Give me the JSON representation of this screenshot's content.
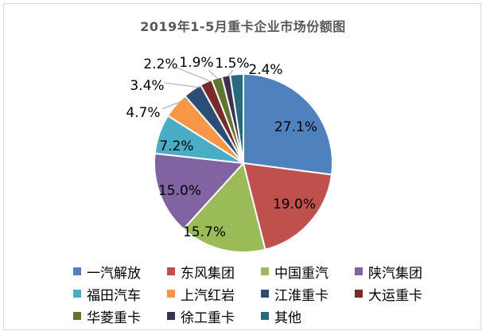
{
  "chart_data": {
    "type": "pie",
    "title": "2019年1-5月重卡企业市场份额图",
    "slices": [
      {
        "label": "一汽解放",
        "value": 27.1,
        "display": "27.1%",
        "color": "#4f81bd"
      },
      {
        "label": "东风集团",
        "value": 19.0,
        "display": "19.0%",
        "color": "#c0504d"
      },
      {
        "label": "中国重汽",
        "value": 15.7,
        "display": "15.7%",
        "color": "#9bbb59"
      },
      {
        "label": "陕汽集团",
        "value": 15.0,
        "display": "15.0%",
        "color": "#8064a2"
      },
      {
        "label": "福田汽车",
        "value": 7.2,
        "display": "7.2%",
        "color": "#4bacc6"
      },
      {
        "label": "上汽红岩",
        "value": 4.7,
        "display": "4.7%",
        "color": "#f79646"
      },
      {
        "label": "江淮重卡",
        "value": 3.4,
        "display": "3.4%",
        "color": "#2c4d75"
      },
      {
        "label": "大运重卡",
        "value": 2.2,
        "display": "2.2%",
        "color": "#772c2a"
      },
      {
        "label": "华菱重卡",
        "value": 1.9,
        "display": "1.9%",
        "color": "#5f7530"
      },
      {
        "label": "徐工重卡",
        "value": 1.5,
        "display": "1.5%",
        "color": "#3f3151"
      },
      {
        "label": "其他",
        "value": 2.4,
        "display": "2.4%",
        "color": "#276a7c"
      }
    ],
    "legend_position": "bottom"
  }
}
